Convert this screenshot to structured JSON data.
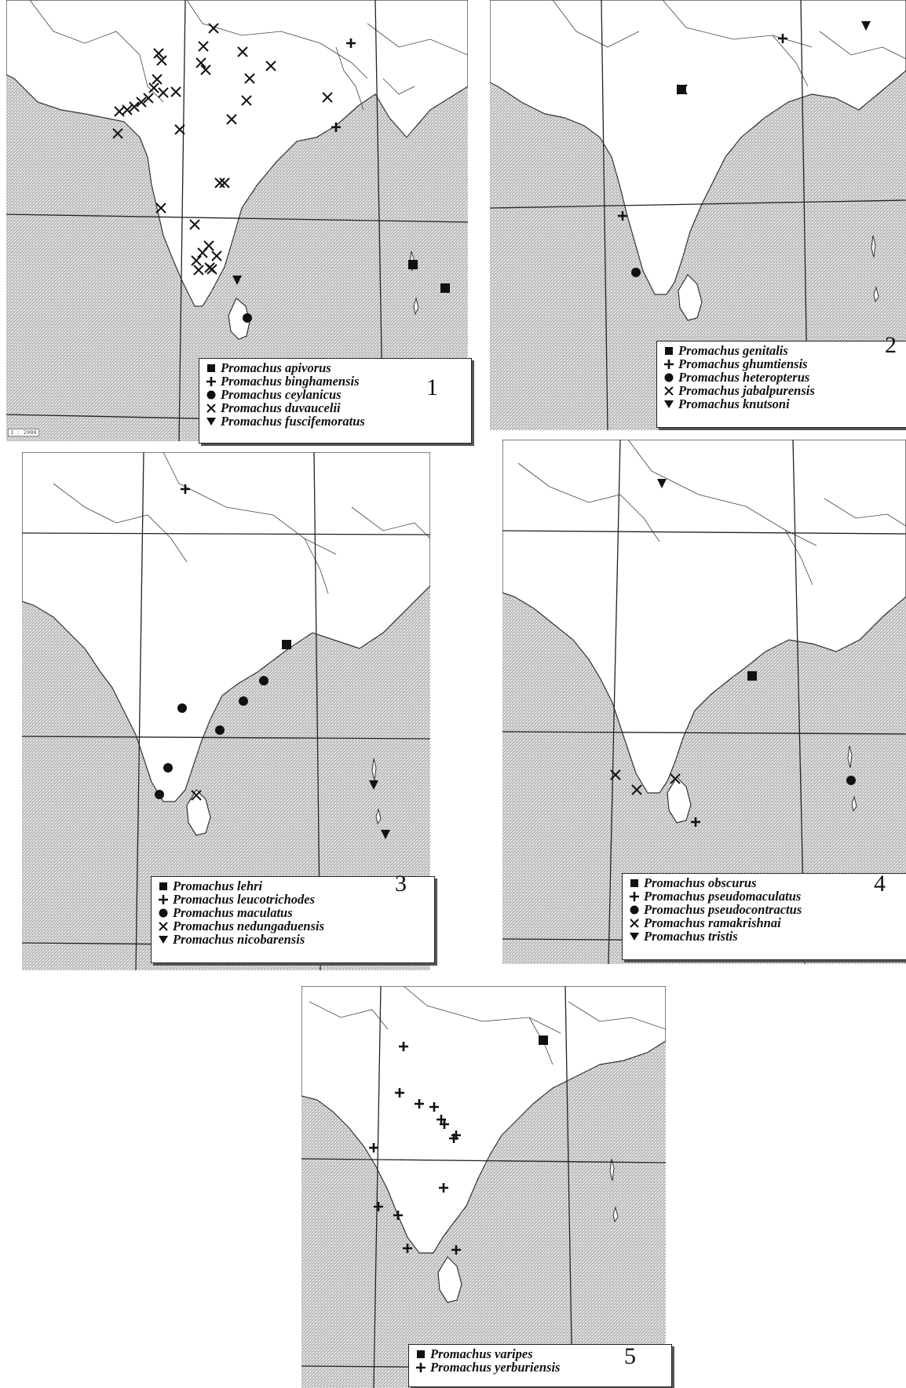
{
  "panels": [
    {
      "number": "1",
      "species": [
        {
          "name": "Promachus apivorus",
          "symbol": "square"
        },
        {
          "name": "Promachus binghamensis",
          "symbol": "plus"
        },
        {
          "name": "Promachus ceylanicus",
          "symbol": "circle"
        },
        {
          "name": "Promachus duvaucelii",
          "symbol": "cross"
        },
        {
          "name": "Promachus fuscifemoratus",
          "symbol": "triangle-down"
        }
      ],
      "scale_label": "1 : 2000"
    },
    {
      "number": "2",
      "species": [
        {
          "name": "Promachus genitalis",
          "symbol": "square"
        },
        {
          "name": "Promachus ghumtiensis",
          "symbol": "plus"
        },
        {
          "name": "Promachus heteropterus",
          "symbol": "circle"
        },
        {
          "name": "Promachus jabalpurensis",
          "symbol": "cross"
        },
        {
          "name": "Promachus knutsoni",
          "symbol": "triangle-down"
        }
      ]
    },
    {
      "number": "3",
      "species": [
        {
          "name": "Promachus lehri",
          "symbol": "square"
        },
        {
          "name": "Promachus leucotrichodes",
          "symbol": "plus"
        },
        {
          "name": "Promachus maculatus",
          "symbol": "circle"
        },
        {
          "name": "Promachus nedungaduensis",
          "symbol": "cross"
        },
        {
          "name": "Promachus nicobarensis",
          "symbol": "triangle-down"
        }
      ]
    },
    {
      "number": "4",
      "species": [
        {
          "name": "Promachus obscurus",
          "symbol": "square"
        },
        {
          "name": "Promachus pseudomaculatus",
          "symbol": "plus"
        },
        {
          "name": "Promachus pseudocontractus",
          "symbol": "circle"
        },
        {
          "name": "Promachus ramakrishnai",
          "symbol": "cross"
        },
        {
          "name": "Promachus tristis",
          "symbol": "triangle-down"
        }
      ]
    },
    {
      "number": "5",
      "species": [
        {
          "name": "Promachus varipes",
          "symbol": "square"
        },
        {
          "name": "Promachus yerburiensis",
          "symbol": "plus"
        }
      ]
    }
  ],
  "colors": {
    "sea_pattern": "#b8b8b8",
    "land": "#ffffff",
    "ink": "#111111"
  }
}
